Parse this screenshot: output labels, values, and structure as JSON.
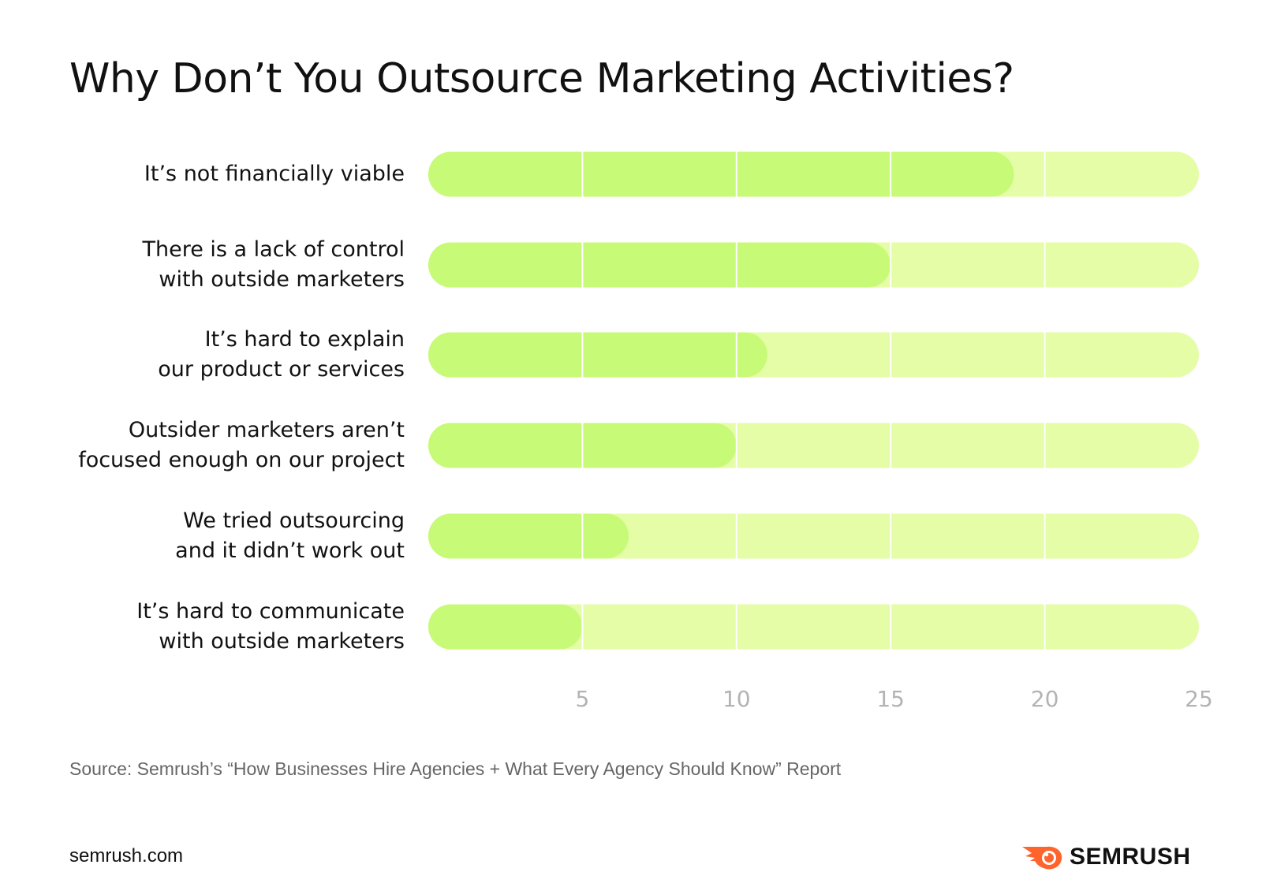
{
  "chart_data": {
    "type": "bar",
    "orientation": "horizontal",
    "title": "Why Don’t You Outsource Marketing Activities?",
    "categories": [
      "It’s not financially viable",
      "There is a lack of control\nwith outside marketers",
      "It’s hard to explain\nour product or services",
      "Outsider marketers aren’t\nfocused enough on our project",
      "We tried outsourcing\nand it didn’t work out",
      "It’s hard to communicate\nwith outside marketers"
    ],
    "values": [
      19,
      15,
      11,
      10,
      6.5,
      5
    ],
    "xlim": [
      0,
      25
    ],
    "xticks": [
      "5",
      "10",
      "15",
      "20",
      "25"
    ],
    "grid": true,
    "colors": {
      "bar": "#c7fa76",
      "track": "#e5fda6",
      "grid": "#ffffff",
      "tick": "#b3b3b3"
    }
  },
  "footer": {
    "source": "Source: Semrush’s “How Businesses Hire Agencies + What Every Agency Should Know” Report",
    "site": "semrush.com",
    "brand": "SEMRUSH",
    "brand_color": "#ff642d"
  }
}
